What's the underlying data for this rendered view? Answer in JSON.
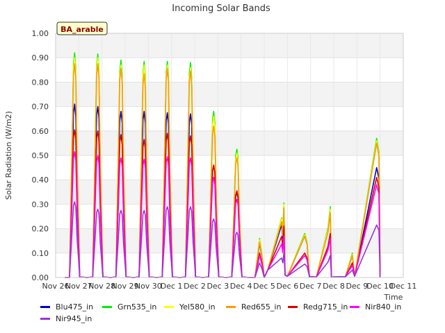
{
  "chart_data": {
    "type": "line",
    "title": "Incoming Solar Bands",
    "xlabel": "Time",
    "ylabel": "Solar Radiation (W/m2)",
    "ylim": [
      0,
      1.0
    ],
    "yticks": [
      "0.00",
      "0.10",
      "0.20",
      "0.30",
      "0.40",
      "0.50",
      "0.60",
      "0.70",
      "0.80",
      "0.90",
      "1.00"
    ],
    "xlim": [
      0,
      15
    ],
    "xticks": [
      {
        "v": 0,
        "label": "Nov 26"
      },
      {
        "v": 1,
        "label": "Nov 27"
      },
      {
        "v": 2,
        "label": "Nov 28"
      },
      {
        "v": 3,
        "label": "Nov 29"
      },
      {
        "v": 4,
        "label": "Nov 30"
      },
      {
        "v": 5,
        "label": "Dec 1"
      },
      {
        "v": 6,
        "label": "Dec 2"
      },
      {
        "v": 7,
        "label": "Dec 3"
      },
      {
        "v": 8,
        "label": "Dec 4"
      },
      {
        "v": 9,
        "label": "Dec 5"
      },
      {
        "v": 10,
        "label": "Dec 6"
      },
      {
        "v": 11,
        "label": "Dec 7"
      },
      {
        "v": 12,
        "label": "Dec 8"
      },
      {
        "v": 13,
        "label": "Dec 9"
      },
      {
        "v": 14,
        "label": "Dec 10"
      },
      {
        "v": 15,
        "label": "Dec 11"
      }
    ],
    "x_unit": "days since Nov 26",
    "annotation": "BA_arable",
    "grid": true,
    "legend_position": "bottom",
    "series": [
      {
        "name": "Blu475_in",
        "color": "#0000cc",
        "peaks": [
          0.71,
          0.7,
          0.68,
          0.68,
          0.675,
          0.67,
          0.46,
          0.35,
          0.14,
          0.27,
          0.17,
          0.18,
          0.09,
          0.45
        ]
      },
      {
        "name": "Grn535_in",
        "color": "#00ee00",
        "peaks": [
          0.92,
          0.915,
          0.89,
          0.885,
          0.885,
          0.88,
          0.68,
          0.525,
          0.16,
          0.305,
          0.18,
          0.29,
          0.1,
          0.57
        ]
      },
      {
        "name": "Yel580_in",
        "color": "#ffff00",
        "peaks": [
          0.9,
          0.9,
          0.87,
          0.87,
          0.87,
          0.86,
          0.66,
          0.51,
          0.155,
          0.3,
          0.175,
          0.28,
          0.095,
          0.56
        ]
      },
      {
        "name": "Red655_in",
        "color": "#ff9900",
        "peaks": [
          0.875,
          0.875,
          0.855,
          0.835,
          0.855,
          0.845,
          0.62,
          0.49,
          0.145,
          0.285,
          0.17,
          0.265,
          0.09,
          0.55
        ]
      },
      {
        "name": "Redg715_in",
        "color": "#dd0000",
        "peaks": [
          0.605,
          0.6,
          0.585,
          0.565,
          0.59,
          0.58,
          0.46,
          0.355,
          0.1,
          0.21,
          0.1,
          0.18,
          0.06,
          0.41
        ]
      },
      {
        "name": "Nir840_in",
        "color": "#ff00ff",
        "peaks": [
          0.515,
          0.5,
          0.49,
          0.485,
          0.495,
          0.49,
          0.41,
          0.32,
          0.09,
          0.17,
          0.09,
          0.16,
          0.05,
          0.38
        ]
      },
      {
        "name": "Nir945_in",
        "color": "#9933dd",
        "peaks": [
          0.31,
          0.28,
          0.275,
          0.275,
          0.29,
          0.29,
          0.24,
          0.185,
          0.06,
          0.1,
          0.055,
          0.09,
          0.03,
          0.215
        ]
      }
    ]
  }
}
